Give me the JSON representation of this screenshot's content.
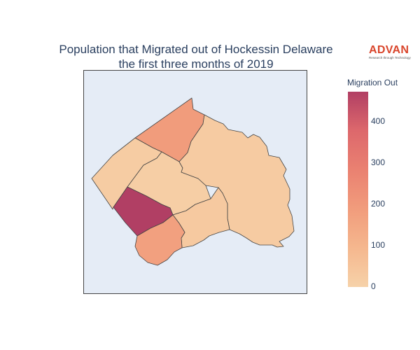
{
  "chart_title_line1": "Population that Migrated out of Hockessin Delaware",
  "chart_title_line2": "the first three months of 2019",
  "logo": {
    "word": "ADVAN",
    "tagline": "Research through Technology"
  },
  "colorbar": {
    "title": "Migration Out",
    "tick_labels": [
      "0",
      "100",
      "200",
      "300",
      "400"
    ],
    "colorscale": [
      "#f6d2a9",
      "#f5b78e",
      "#f19c7c",
      "#ea8171",
      "#dd686c",
      "#b13f64"
    ],
    "range": [
      0,
      475
    ]
  },
  "chart_data": {
    "type": "choropleth",
    "variable": "Migration Out",
    "regions": [
      {
        "id": "region-north",
        "value": 190
      },
      {
        "id": "region-west-strip",
        "value": 20
      },
      {
        "id": "region-center",
        "value": 15
      },
      {
        "id": "region-east",
        "value": 25
      },
      {
        "id": "region-southwest",
        "value": 475
      },
      {
        "id": "region-south-central",
        "value": 30
      },
      {
        "id": "region-south",
        "value": 175
      }
    ]
  }
}
